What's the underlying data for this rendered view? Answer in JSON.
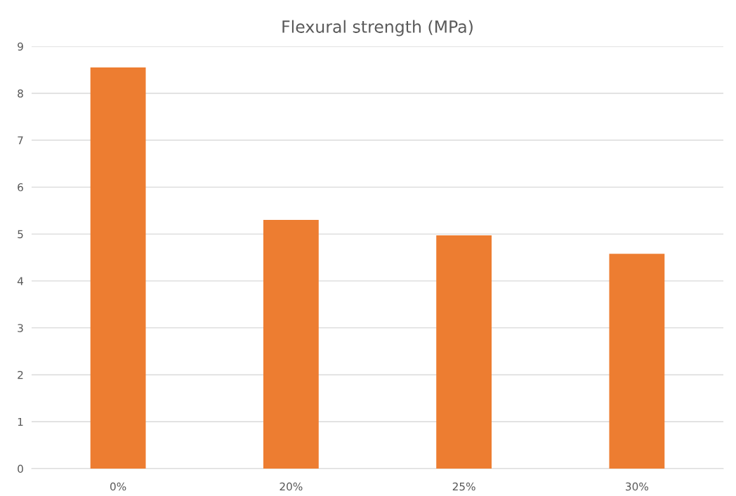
{
  "chart_data": {
    "type": "bar",
    "title": "Flexural strength (MPa)",
    "categories": [
      "0%",
      "20%",
      "25%",
      "30%"
    ],
    "values": [
      8.55,
      5.3,
      4.97,
      4.58
    ],
    "color": "#ed7d31",
    "ylim": [
      0,
      9
    ],
    "yticks": [
      0,
      1,
      2,
      3,
      4,
      5,
      6,
      7,
      8,
      9
    ],
    "grid": "y",
    "legend": false
  }
}
